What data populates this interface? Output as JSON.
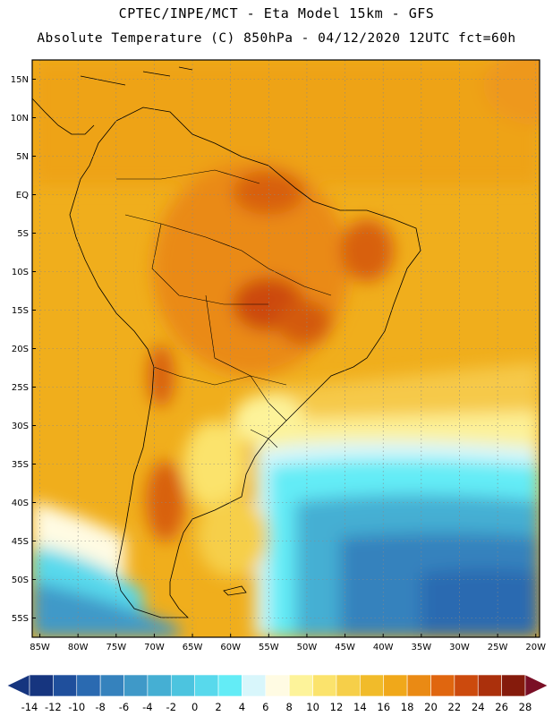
{
  "title": {
    "line1": "CPTEC/INPE/MCT -  Eta Model 15km - GFS",
    "line2": "Absolute Temperature (C) 850hPa - 04/12/2020 12UTC fct=60h"
  },
  "map": {
    "lat_labels": [
      "15N",
      "10N",
      "5N",
      "EQ",
      "5S",
      "10S",
      "15S",
      "20S",
      "25S",
      "30S",
      "35S",
      "40S",
      "45S",
      "50S",
      "55S"
    ],
    "lon_labels": [
      "85W",
      "80W",
      "75W",
      "70W",
      "65W",
      "60W",
      "55W",
      "50W",
      "45W",
      "40W",
      "35W",
      "30W",
      "25W",
      "20W"
    ],
    "lat_range": [
      15,
      -55
    ],
    "lon_range": [
      -85,
      -20
    ]
  },
  "colorbar": {
    "labels": [
      "-14",
      "-12",
      "-10",
      "-8",
      "-6",
      "-4",
      "-2",
      "0",
      "2",
      "4",
      "6",
      "8",
      "10",
      "12",
      "14",
      "16",
      "18",
      "20",
      "22",
      "24",
      "26",
      "28"
    ],
    "colors": [
      "#16357f",
      "#1f4f9c",
      "#2a6ab1",
      "#3582bd",
      "#3f99c8",
      "#45afd3",
      "#4cc4df",
      "#58d9ec",
      "#63ecf6",
      "#d8f6fb",
      "#fffbe3",
      "#fdf39a",
      "#fbe36c",
      "#f6cf49",
      "#f1bb2a",
      "#f0a81a",
      "#ea8a14",
      "#e0660f",
      "#cc4a0d",
      "#ab300c",
      "#851b0c"
    ],
    "min_arrow_color": "#16357f",
    "max_arrow_color": "#7a0f26"
  }
}
